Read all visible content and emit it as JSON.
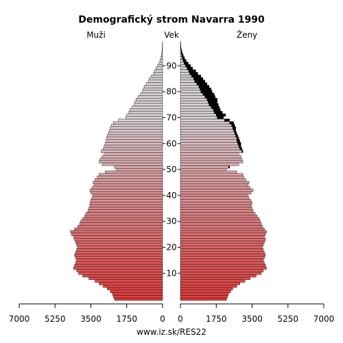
{
  "chart_data": {
    "type": "bar",
    "title": "Demografický strom Navarra 1990",
    "left_label": "Muži",
    "center_label": "Vek",
    "right_label": "Ženy",
    "footer": "www.iz.sk/RES22",
    "age_ticks": [
      "10",
      "20",
      "30",
      "40",
      "50",
      "60",
      "70",
      "80",
      "90"
    ],
    "x_ticks_left": [
      "7000",
      "5250",
      "3500",
      "1750",
      "0"
    ],
    "x_ticks_right": [
      "0",
      "1750",
      "3500",
      "5250",
      "7000"
    ],
    "xlim": [
      0,
      7000
    ],
    "age_range": [
      0,
      99
    ],
    "colors": {
      "young": "#dc3c3c",
      "old": "#d6cfd4",
      "female_excess": "#000000",
      "outline": "#000000"
    },
    "series": [
      {
        "name": "Muži",
        "values": [
          2350,
          2400,
          2450,
          2550,
          2700,
          2900,
          3100,
          3300,
          3600,
          3900,
          4100,
          4200,
          4350,
          4300,
          4250,
          4200,
          4250,
          4300,
          4250,
          4200,
          4150,
          4200,
          4250,
          4300,
          4350,
          4450,
          4500,
          4300,
          4150,
          4050,
          4000,
          3900,
          3800,
          3750,
          3650,
          3600,
          3550,
          3550,
          3500,
          3450,
          3400,
          3500,
          3550,
          3450,
          3350,
          3400,
          3300,
          3200,
          3100,
          2800,
          2250,
          2350,
          2950,
          3100,
          3050,
          2950,
          2850,
          3000,
          2900,
          2850,
          2800,
          2750,
          2750,
          2700,
          2650,
          2600,
          2550,
          2500,
          2400,
          2150,
          1800,
          1750,
          1650,
          1600,
          1500,
          1400,
          1350,
          1300,
          1200,
          1100,
          1000,
          950,
          900,
          800,
          700,
          650,
          550,
          450,
          400,
          320,
          250,
          180,
          130,
          90,
          60,
          40,
          25,
          15,
          8,
          5
        ]
      },
      {
        "name": "Ženy",
        "values": [
          2250,
          2300,
          2350,
          2450,
          2550,
          2750,
          2900,
          3150,
          3400,
          3700,
          3950,
          4050,
          4200,
          4150,
          4100,
          4050,
          4100,
          4150,
          4100,
          4050,
          4000,
          4050,
          4100,
          4150,
          4100,
          4150,
          4200,
          4100,
          4000,
          3950,
          3900,
          3850,
          3750,
          3650,
          3550,
          3500,
          3450,
          3500,
          3450,
          3350,
          3300,
          3450,
          3550,
          3400,
          3300,
          3350,
          3200,
          3100,
          3050,
          2750,
          2250,
          2400,
          2850,
          3050,
          3000,
          2950,
          2850,
          3050,
          3000,
          2950,
          2950,
          2900,
          2850,
          2800,
          2750,
          2700,
          2700,
          2650,
          2600,
          2400,
          2100,
          2200,
          2050,
          1950,
          1900,
          1850,
          1800,
          1800,
          1700,
          1650,
          1550,
          1500,
          1400,
          1300,
          1200,
          1100,
          1000,
          850,
          750,
          600,
          500,
          380,
          280,
          200,
          140,
          90,
          55,
          30,
          18,
          10
        ]
      }
    ]
  }
}
